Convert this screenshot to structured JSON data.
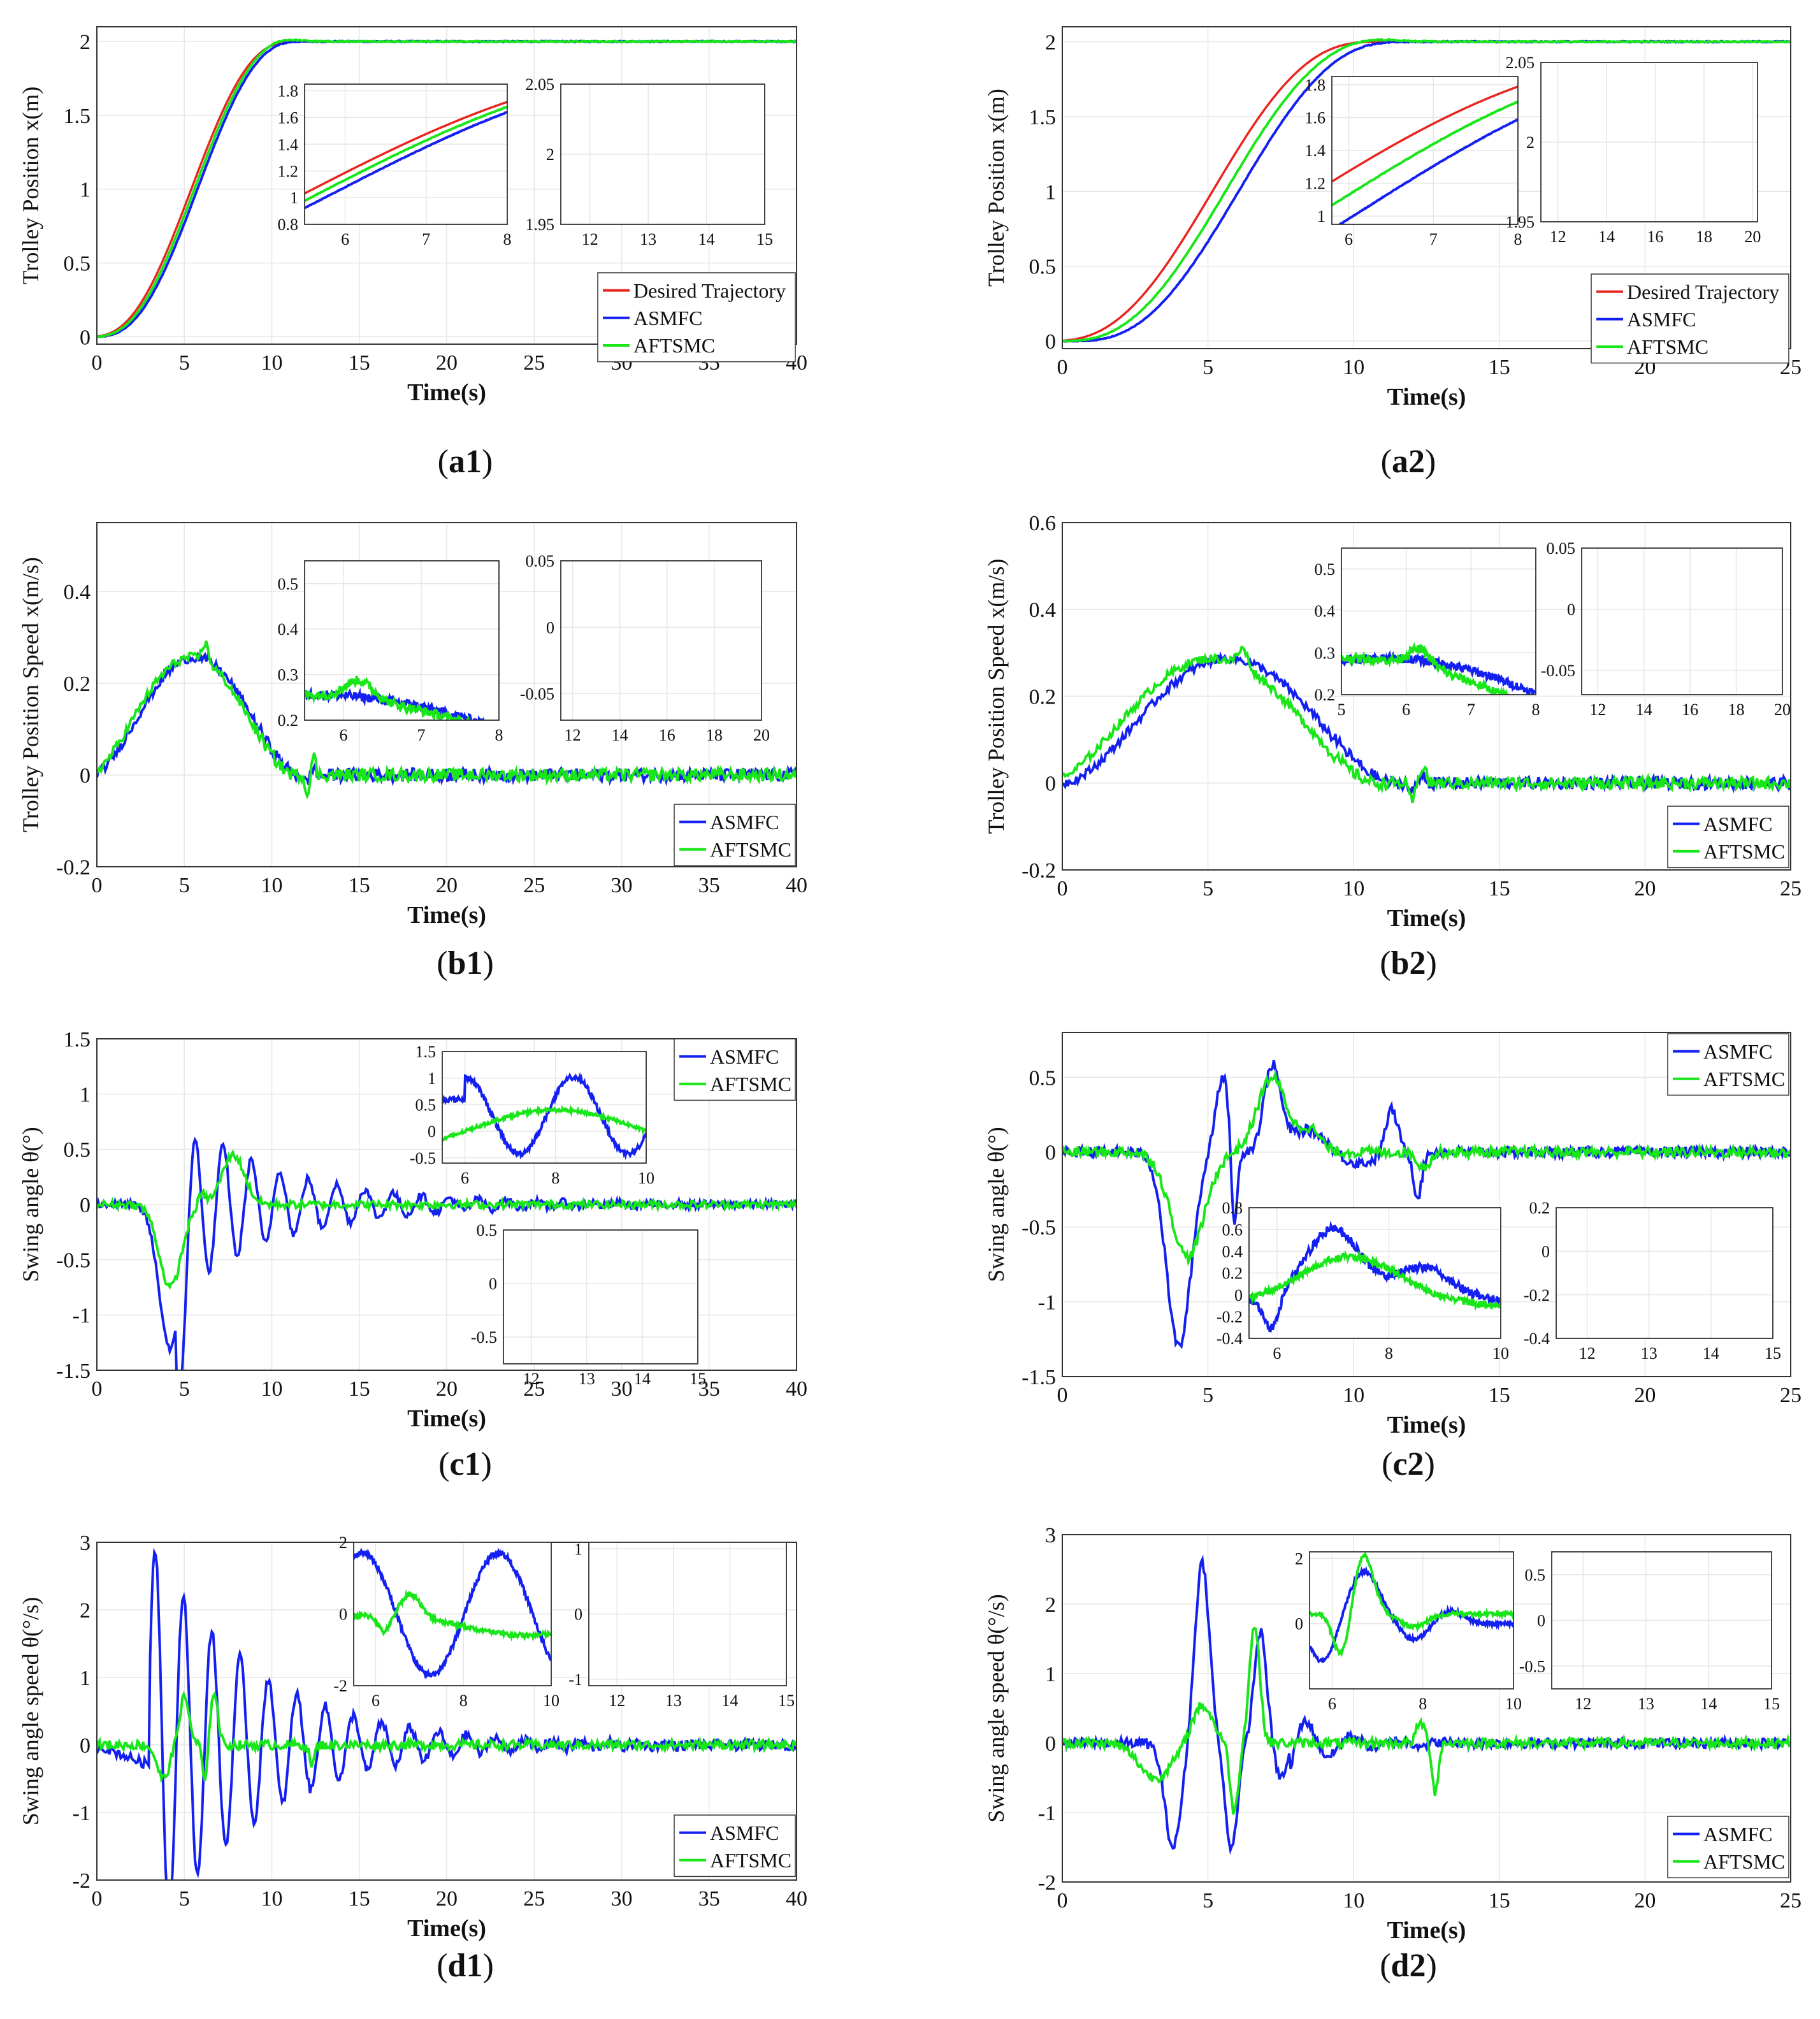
{
  "colors": {
    "desired": "#e8251f",
    "asmfc": "#1320f0",
    "aftsmc": "#19e619",
    "grid": "#e6e6e6",
    "axis": "#333333"
  },
  "legend_labels": {
    "desired": "Desired Trajectory",
    "asmfc": "ASMFC",
    "aftsmc": "AFTSMC"
  },
  "captions": {
    "a1": "a1",
    "a2": "a2",
    "b1": "b1",
    "b2": "b2",
    "c1": "c1",
    "c2": "c2",
    "d1": "d1",
    "d2": "d2"
  },
  "chart_data": [
    {
      "id": "a1",
      "type": "line",
      "title": "",
      "xlabel": "Time(s)",
      "ylabel": "Trolley Position x(m)",
      "xlim": [
        0,
        40
      ],
      "ylim": [
        -0.05,
        2.1
      ],
      "xticks": [
        0,
        5,
        10,
        15,
        20,
        25,
        30,
        35,
        40
      ],
      "yticks": [
        0,
        0.5,
        1,
        1.5,
        2
      ],
      "legend": "bottom-right",
      "series_names": [
        "Desired Trajectory",
        "ASMFC",
        "AFTSMC"
      ],
      "insets": [
        {
          "xlim": [
            5.5,
            8
          ],
          "ylim": [
            0.8,
            1.85
          ],
          "xticks": [
            6,
            7,
            8
          ],
          "yticks": [
            0.8,
            1,
            1.2,
            1.4,
            1.6,
            1.8
          ],
          "kind": "pos_rise"
        },
        {
          "xlim": [
            11.5,
            15
          ],
          "ylim": [
            1.95,
            2.05
          ],
          "xticks": [
            12,
            13,
            14,
            15
          ],
          "yticks": [
            1.95,
            2,
            2.05
          ],
          "kind": "pos_ss"
        }
      ]
    },
    {
      "id": "a2",
      "type": "line",
      "title": "",
      "xlabel": "Time(s)",
      "ylabel": "Trolley Position x(m)",
      "xlim": [
        0,
        25
      ],
      "ylim": [
        -0.05,
        2.1
      ],
      "xticks": [
        0,
        5,
        10,
        15,
        20,
        25
      ],
      "yticks": [
        0,
        0.5,
        1,
        1.5,
        2
      ],
      "legend": "bottom-right",
      "series_names": [
        "Desired Trajectory",
        "ASMFC",
        "AFTSMC"
      ],
      "insets": [
        {
          "xlim": [
            5.8,
            8
          ],
          "ylim": [
            0.95,
            1.85
          ],
          "xticks": [
            6,
            7,
            8
          ],
          "yticks": [
            1,
            1.2,
            1.4,
            1.6,
            1.8
          ],
          "kind": "pos_rise"
        },
        {
          "xlim": [
            11.3,
            20.2
          ],
          "ylim": [
            1.95,
            2.05
          ],
          "xticks": [
            12,
            14,
            16,
            18,
            20
          ],
          "yticks": [
            1.95,
            2,
            2.05
          ],
          "kind": "pos_ss"
        }
      ]
    },
    {
      "id": "b1",
      "type": "line",
      "title": "",
      "xlabel": "Time(s)",
      "ylabel": "Trolley Position Speed x(m/s)",
      "xlim": [
        0,
        40
      ],
      "ylim": [
        -0.2,
        0.55
      ],
      "xticks": [
        0,
        5,
        10,
        15,
        20,
        25,
        30,
        35,
        40
      ],
      "yticks": [
        -0.2,
        0,
        0.2,
        0.4
      ],
      "legend": "bottom-right",
      "series_names": [
        "ASMFC",
        "AFTSMC"
      ],
      "insets": [
        {
          "xlim": [
            5.5,
            8
          ],
          "ylim": [
            0.2,
            0.55
          ],
          "xticks": [
            6,
            7,
            8
          ],
          "yticks": [
            0.2,
            0.3,
            0.4,
            0.5
          ],
          "kind": "vel_fall"
        },
        {
          "xlim": [
            11.5,
            20
          ],
          "ylim": [
            -0.07,
            0.05
          ],
          "xticks": [
            12,
            14,
            16,
            18,
            20
          ],
          "yticks": [
            -0.05,
            0,
            0.05
          ],
          "kind": "vel_ss"
        }
      ]
    },
    {
      "id": "b2",
      "type": "line",
      "title": "",
      "xlabel": "Time(s)",
      "ylabel": "Trolley Position Speed x(m/s)",
      "xlim": [
        0,
        25
      ],
      "ylim": [
        -0.2,
        0.6
      ],
      "xticks": [
        0,
        5,
        10,
        15,
        20,
        25
      ],
      "yticks": [
        -0.2,
        0,
        0.2,
        0.4,
        0.6
      ],
      "legend": "bottom-right",
      "series_names": [
        "ASMFC",
        "AFTSMC"
      ],
      "insets": [
        {
          "xlim": [
            5,
            8
          ],
          "ylim": [
            0.2,
            0.55
          ],
          "xticks": [
            5,
            6,
            7,
            8
          ],
          "yticks": [
            0.2,
            0.3,
            0.4,
            0.5
          ],
          "kind": "vel_fall"
        },
        {
          "xlim": [
            11.3,
            20
          ],
          "ylim": [
            -0.07,
            0.05
          ],
          "xticks": [
            12,
            14,
            16,
            18,
            20
          ],
          "yticks": [
            -0.05,
            0,
            0.05
          ],
          "kind": "vel_ss"
        }
      ]
    },
    {
      "id": "c1",
      "type": "line",
      "title": "",
      "xlabel": "Time(s)",
      "ylabel": "Swing angle θ(°)",
      "xlim": [
        0,
        40
      ],
      "ylim": [
        -1.5,
        1.5
      ],
      "xticks": [
        0,
        5,
        10,
        15,
        20,
        25,
        30,
        35,
        40
      ],
      "yticks": [
        -1.5,
        -1,
        -0.5,
        0,
        0.5,
        1,
        1.5
      ],
      "legend": "top-right",
      "series_names": [
        "ASMFC",
        "AFTSMC"
      ],
      "insets": [
        {
          "xlim": [
            5.5,
            10
          ],
          "ylim": [
            -0.6,
            1.5
          ],
          "xticks": [
            6,
            8,
            10
          ],
          "yticks": [
            -0.5,
            0,
            0.5,
            1,
            1.5
          ],
          "kind": "ang_a"
        },
        {
          "xlim": [
            11.5,
            15
          ],
          "ylim": [
            -0.75,
            0.5
          ],
          "xticks": [
            12,
            13,
            14,
            15
          ],
          "yticks": [
            -0.5,
            0,
            0.5
          ],
          "kind": "ang_b"
        }
      ]
    },
    {
      "id": "c2",
      "type": "line",
      "title": "",
      "xlabel": "Time(s)",
      "ylabel": "Swing angle θ(°)",
      "xlim": [
        0,
        25
      ],
      "ylim": [
        -1.5,
        0.8
      ],
      "xticks": [
        0,
        5,
        10,
        15,
        20,
        25
      ],
      "yticks": [
        -1.5,
        -1,
        -0.5,
        0,
        0.5
      ],
      "legend": "top-right",
      "series_names": [
        "ASMFC",
        "AFTSMC"
      ],
      "insets": [
        {
          "xlim": [
            5.5,
            10
          ],
          "ylim": [
            -0.4,
            0.8
          ],
          "xticks": [
            6,
            8,
            10
          ],
          "yticks": [
            -0.4,
            -0.2,
            0,
            0.2,
            0.4,
            0.6,
            0.8
          ],
          "kind": "ang_a"
        },
        {
          "xlim": [
            11.5,
            15
          ],
          "ylim": [
            -0.4,
            0.2
          ],
          "xticks": [
            12,
            13,
            14,
            15
          ],
          "yticks": [
            -0.4,
            -0.2,
            0,
            0.2
          ],
          "kind": "ang_b"
        }
      ]
    },
    {
      "id": "d1",
      "type": "line",
      "title": "",
      "xlabel": "Time(s)",
      "ylabel": "Swing angle speed θ(°/s)",
      "xlim": [
        0,
        40
      ],
      "ylim": [
        -2,
        3
      ],
      "xticks": [
        0,
        5,
        10,
        15,
        20,
        25,
        30,
        35,
        40
      ],
      "yticks": [
        -2,
        -1,
        0,
        1,
        2,
        3
      ],
      "legend": "bottom-right",
      "series_names": [
        "ASMFC",
        "AFTSMC"
      ],
      "insets": [
        {
          "xlim": [
            5.5,
            10
          ],
          "ylim": [
            -2,
            2
          ],
          "xticks": [
            6,
            8,
            10
          ],
          "yticks": [
            -2,
            0,
            2
          ],
          "kind": "angv_a"
        },
        {
          "xlim": [
            11.5,
            15
          ],
          "ylim": [
            -1.1,
            1.1
          ],
          "xticks": [
            12,
            13,
            14,
            15
          ],
          "yticks": [
            -1,
            0,
            1
          ],
          "kind": "angv_b"
        }
      ]
    },
    {
      "id": "d2",
      "type": "line",
      "title": "",
      "xlabel": "Time(s)",
      "ylabel": "Swing angle speed θ(°/s)",
      "xlim": [
        0,
        25
      ],
      "ylim": [
        -2,
        3
      ],
      "xticks": [
        0,
        5,
        10,
        15,
        20,
        25
      ],
      "yticks": [
        -2,
        -1,
        0,
        1,
        2,
        3
      ],
      "legend": "bottom-right",
      "series_names": [
        "ASMFC",
        "AFTSMC"
      ],
      "insets": [
        {
          "xlim": [
            5.5,
            10
          ],
          "ylim": [
            -2,
            2.2
          ],
          "xticks": [
            6,
            8,
            10
          ],
          "yticks": [
            0,
            2
          ],
          "kind": "angv_a"
        },
        {
          "xlim": [
            11.5,
            15
          ],
          "ylim": [
            -0.75,
            0.75
          ],
          "xticks": [
            12,
            13,
            14,
            15
          ],
          "yticks": [
            -0.5,
            0,
            0.5
          ],
          "kind": "angv_b"
        }
      ]
    }
  ]
}
